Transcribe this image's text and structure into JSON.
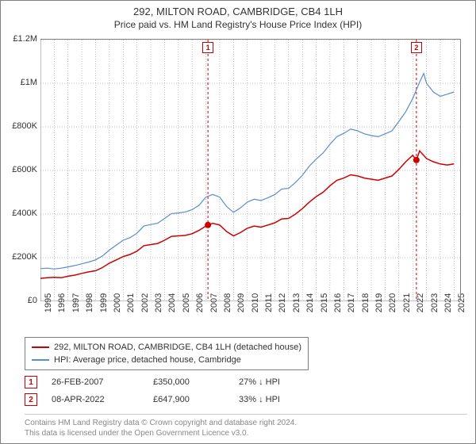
{
  "title": "292, MILTON ROAD, CAMBRIDGE, CB4 1LH",
  "subtitle": "Price paid vs. HM Land Registry's House Price Index (HPI)",
  "chart": {
    "type": "line",
    "background_color": "#ffffff",
    "border_color": "#808080",
    "grid_color": "#808080",
    "grid_dash": "1,2",
    "y_axis": {
      "min": 0,
      "max": 1200000,
      "ticks": [
        0,
        200000,
        400000,
        600000,
        800000,
        1000000,
        1200000
      ],
      "labels": [
        "£0",
        "£200K",
        "£400K",
        "£600K",
        "£800K",
        "£1M",
        "£1.2M"
      ]
    },
    "x_axis": {
      "min": 1995,
      "max": 2025.5,
      "ticks": [
        1995,
        1996,
        1997,
        1998,
        1999,
        2000,
        2001,
        2002,
        2003,
        2004,
        2005,
        2006,
        2007,
        2008,
        2009,
        2010,
        2011,
        2012,
        2013,
        2014,
        2015,
        2016,
        2017,
        2018,
        2019,
        2020,
        2021,
        2022,
        2023,
        2024,
        2025
      ]
    },
    "series": [
      {
        "id": "property",
        "label": "292, MILTON ROAD, CAMBRIDGE, CB4 1LH (detached house)",
        "color": "#cc0000",
        "line_width": 1.5,
        "data": [
          [
            1995,
            105000
          ],
          [
            1995.5,
            108000
          ],
          [
            1996,
            110000
          ],
          [
            1996.5,
            108000
          ],
          [
            1997,
            115000
          ],
          [
            1997.5,
            120000
          ],
          [
            1998,
            128000
          ],
          [
            1998.5,
            135000
          ],
          [
            1999,
            140000
          ],
          [
            1999.5,
            155000
          ],
          [
            2000,
            175000
          ],
          [
            2000.5,
            190000
          ],
          [
            2001,
            205000
          ],
          [
            2001.5,
            215000
          ],
          [
            2002,
            230000
          ],
          [
            2002.5,
            255000
          ],
          [
            2003,
            260000
          ],
          [
            2003.5,
            265000
          ],
          [
            2004,
            280000
          ],
          [
            2004.5,
            298000
          ],
          [
            2005,
            300000
          ],
          [
            2005.5,
            302000
          ],
          [
            2006,
            310000
          ],
          [
            2006.5,
            325000
          ],
          [
            2007,
            345000
          ],
          [
            2007.15,
            350000
          ],
          [
            2007.5,
            358000
          ],
          [
            2008,
            350000
          ],
          [
            2008.5,
            320000
          ],
          [
            2009,
            300000
          ],
          [
            2009.5,
            315000
          ],
          [
            2010,
            335000
          ],
          [
            2010.5,
            345000
          ],
          [
            2011,
            340000
          ],
          [
            2011.5,
            350000
          ],
          [
            2012,
            360000
          ],
          [
            2012.5,
            378000
          ],
          [
            2013,
            380000
          ],
          [
            2013.5,
            400000
          ],
          [
            2014,
            425000
          ],
          [
            2014.5,
            455000
          ],
          [
            2015,
            480000
          ],
          [
            2015.5,
            500000
          ],
          [
            2016,
            530000
          ],
          [
            2016.5,
            555000
          ],
          [
            2017,
            565000
          ],
          [
            2017.5,
            580000
          ],
          [
            2018,
            575000
          ],
          [
            2018.5,
            565000
          ],
          [
            2019,
            560000
          ],
          [
            2019.5,
            555000
          ],
          [
            2020,
            565000
          ],
          [
            2020.5,
            575000
          ],
          [
            2021,
            605000
          ],
          [
            2021.5,
            640000
          ],
          [
            2022,
            670000
          ],
          [
            2022.27,
            647900
          ],
          [
            2022.5,
            690000
          ],
          [
            2023,
            655000
          ],
          [
            2023.5,
            640000
          ],
          [
            2024,
            630000
          ],
          [
            2024.5,
            625000
          ],
          [
            2025,
            630000
          ]
        ]
      },
      {
        "id": "hpi",
        "label": "HPI: Average price, detached house, Cambridge",
        "color": "#5b8bd0",
        "line_width": 1.2,
        "data": [
          [
            1995,
            150000
          ],
          [
            1995.5,
            152000
          ],
          [
            1996,
            148000
          ],
          [
            1996.5,
            152000
          ],
          [
            1997,
            158000
          ],
          [
            1997.5,
            164000
          ],
          [
            1998,
            172000
          ],
          [
            1998.5,
            180000
          ],
          [
            1999,
            190000
          ],
          [
            1999.5,
            208000
          ],
          [
            2000,
            235000
          ],
          [
            2000.5,
            258000
          ],
          [
            2001,
            280000
          ],
          [
            2001.5,
            292000
          ],
          [
            2002,
            312000
          ],
          [
            2002.5,
            345000
          ],
          [
            2003,
            352000
          ],
          [
            2003.5,
            358000
          ],
          [
            2004,
            380000
          ],
          [
            2004.5,
            402000
          ],
          [
            2005,
            405000
          ],
          [
            2005.5,
            410000
          ],
          [
            2006,
            420000
          ],
          [
            2006.5,
            440000
          ],
          [
            2007,
            478000
          ],
          [
            2007.5,
            490000
          ],
          [
            2008,
            478000
          ],
          [
            2008.5,
            435000
          ],
          [
            2009,
            408000
          ],
          [
            2009.5,
            428000
          ],
          [
            2010,
            455000
          ],
          [
            2010.5,
            468000
          ],
          [
            2011,
            462000
          ],
          [
            2011.5,
            475000
          ],
          [
            2012,
            490000
          ],
          [
            2012.5,
            515000
          ],
          [
            2013,
            518000
          ],
          [
            2013.5,
            545000
          ],
          [
            2014,
            578000
          ],
          [
            2014.5,
            620000
          ],
          [
            2015,
            652000
          ],
          [
            2015.5,
            680000
          ],
          [
            2016,
            720000
          ],
          [
            2016.5,
            755000
          ],
          [
            2017,
            770000
          ],
          [
            2017.5,
            790000
          ],
          [
            2018,
            782000
          ],
          [
            2018.5,
            768000
          ],
          [
            2019,
            760000
          ],
          [
            2019.5,
            755000
          ],
          [
            2020,
            768000
          ],
          [
            2020.5,
            782000
          ],
          [
            2021,
            825000
          ],
          [
            2021.5,
            870000
          ],
          [
            2022,
            930000
          ],
          [
            2022.5,
            1005000
          ],
          [
            2022.8,
            1045000
          ],
          [
            2023,
            1000000
          ],
          [
            2023.5,
            960000
          ],
          [
            2024,
            940000
          ],
          [
            2024.5,
            950000
          ],
          [
            2025,
            960000
          ]
        ]
      }
    ],
    "events": [
      {
        "n": "1",
        "date_label": "26-FEB-2007",
        "year": 2007.15,
        "price_label": "£350,000",
        "price": 350000,
        "pct_label": "27% ↓ HPI",
        "color": "#cc0000"
      },
      {
        "n": "2",
        "date_label": "08-APR-2022",
        "year": 2022.27,
        "price_label": "£647,900",
        "price": 647900,
        "pct_label": "33% ↓ HPI",
        "color": "#cc0000"
      }
    ]
  },
  "footer": {
    "line1": "Contains HM Land Registry data © Crown copyright and database right 2024.",
    "line2": "This data is licensed under the Open Government Licence v3.0."
  }
}
